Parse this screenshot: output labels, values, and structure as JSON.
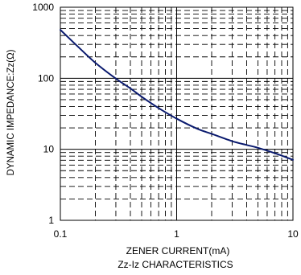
{
  "chart_data": {
    "type": "line",
    "xscale": "log",
    "yscale": "log",
    "xlim": [
      0.1,
      10
    ],
    "ylim": [
      1,
      1000
    ],
    "x_ticks": [
      {
        "value": 0.1,
        "label": "0.1"
      },
      {
        "value": 1,
        "label": "1"
      },
      {
        "value": 10,
        "label": "10"
      }
    ],
    "y_ticks": [
      {
        "value": 1000,
        "label": "1000"
      },
      {
        "value": 100,
        "label": "100"
      },
      {
        "value": 10,
        "label": "10"
      },
      {
        "value": 1,
        "label": "1"
      }
    ],
    "xlabel": "ZENER CURRENT(mA)",
    "ylabel": "DYNAMIC IMPEDANCE:Zz(Ω)",
    "title": "Zz-Iz CHARACTERISTICS",
    "grid": true,
    "grid_style": "dashed minor, solid major",
    "series": [
      {
        "color": "#0a1a6e",
        "x": [
          0.1,
          0.15,
          0.2,
          0.3,
          0.4,
          0.5,
          0.7,
          1,
          1.5,
          2,
          3,
          4,
          5,
          7,
          10
        ],
        "y": [
          480,
          255,
          165,
          99,
          72,
          55,
          38,
          27,
          19.5,
          16.5,
          13,
          11.5,
          10.5,
          8.8,
          7.1
        ]
      }
    ]
  }
}
